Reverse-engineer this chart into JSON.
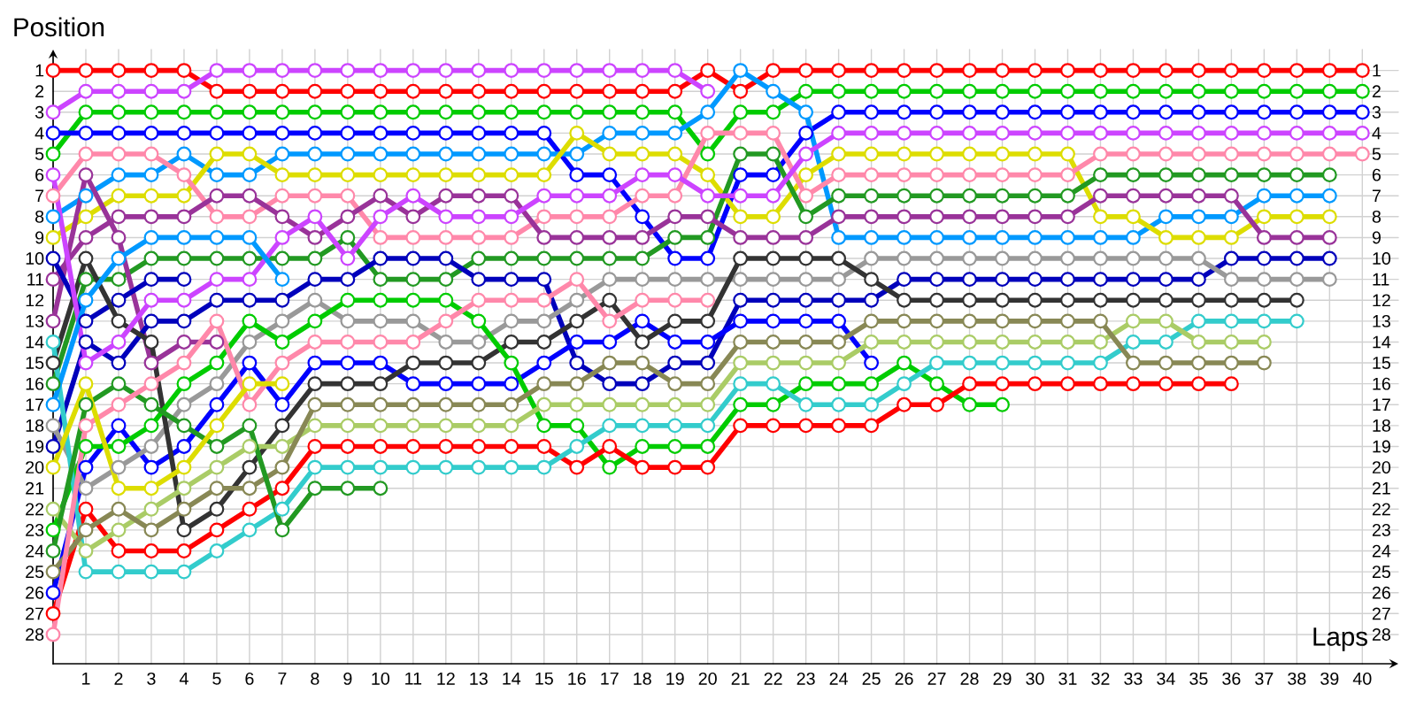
{
  "chart_data": {
    "type": "line",
    "xlabel": "Laps",
    "ylabel": "Position",
    "marker": "circle",
    "line_style": "solid",
    "grid": true,
    "x": [
      0,
      1,
      2,
      3,
      4,
      5,
      6,
      7,
      8,
      9,
      10,
      11,
      12,
      13,
      14,
      15,
      16,
      17,
      18,
      19,
      20,
      21,
      22,
      23,
      24,
      25,
      26,
      27,
      28,
      29,
      30,
      31,
      32,
      33,
      34,
      35,
      36,
      37,
      38,
      39,
      40
    ],
    "xlim": [
      0,
      41.1
    ],
    "ylim": [
      29.4,
      0
    ],
    "xticks": [
      1,
      2,
      3,
      4,
      5,
      6,
      7,
      8,
      9,
      10,
      11,
      12,
      13,
      14,
      15,
      16,
      17,
      18,
      19,
      20,
      21,
      22,
      23,
      24,
      25,
      26,
      27,
      28,
      29,
      30,
      31,
      32,
      33,
      34,
      35,
      36,
      37,
      38,
      39,
      40
    ],
    "yticks": [
      1,
      2,
      3,
      4,
      5,
      6,
      7,
      8,
      9,
      10,
      11,
      12,
      13,
      14,
      15,
      16,
      17,
      18,
      19,
      20,
      21,
      22,
      23,
      24,
      25,
      26,
      27,
      28
    ],
    "y2lim": [
      29.4,
      0
    ],
    "y2ticks": [
      1,
      2,
      3,
      4,
      5,
      6,
      7,
      8,
      9,
      10,
      11,
      12,
      13,
      14,
      15,
      16,
      17,
      18,
      19,
      20,
      21,
      22,
      23,
      24,
      25,
      26,
      27,
      28
    ],
    "series": [
      {
        "color": "#ff0000",
        "values": [
          1,
          1,
          1,
          1,
          1,
          2,
          2,
          2,
          2,
          2,
          2,
          2,
          2,
          2,
          2,
          2,
          2,
          2,
          2,
          2,
          1,
          2,
          1,
          1,
          1,
          1,
          1,
          1,
          1,
          1,
          1,
          1,
          1,
          1,
          1,
          1,
          1,
          1,
          1,
          1,
          1
        ]
      },
      {
        "color": "#cc44ff",
        "values": [
          3,
          2,
          2,
          2,
          2,
          1,
          1,
          1,
          1,
          1,
          1,
          1,
          1,
          1,
          1,
          1,
          1,
          1,
          1,
          1,
          2,
          null,
          null,
          null,
          null,
          null,
          null,
          null,
          null,
          null,
          null,
          null,
          null,
          null,
          null,
          null,
          null,
          null,
          null,
          null,
          null
        ]
      },
      {
        "color": "#00cc00",
        "values": [
          5,
          3,
          3,
          3,
          3,
          3,
          3,
          3,
          3,
          3,
          3,
          3,
          3,
          3,
          3,
          3,
          3,
          3,
          3,
          3,
          5,
          3,
          3,
          2,
          2,
          2,
          2,
          2,
          2,
          2,
          2,
          2,
          2,
          2,
          2,
          2,
          2,
          2,
          2,
          2,
          2
        ]
      },
      {
        "color": "#0000ff",
        "values": [
          4,
          4,
          4,
          4,
          4,
          4,
          4,
          4,
          4,
          4,
          4,
          4,
          4,
          4,
          4,
          4,
          6,
          6,
          8,
          10,
          10,
          6,
          6,
          4,
          3,
          3,
          3,
          3,
          3,
          3,
          3,
          3,
          3,
          3,
          3,
          3,
          3,
          3,
          3,
          3,
          3
        ]
      },
      {
        "color": "#0099ff",
        "values": [
          8,
          7,
          6,
          6,
          5,
          6,
          6,
          5,
          5,
          5,
          5,
          5,
          5,
          5,
          5,
          5,
          5,
          4,
          4,
          4,
          3,
          1,
          2,
          3,
          9,
          9,
          9,
          9,
          9,
          9,
          9,
          9,
          9,
          9,
          8,
          8,
          8,
          7,
          7,
          7,
          null
        ]
      },
      {
        "color": "#dddd00",
        "values": [
          9,
          8,
          7,
          7,
          7,
          5,
          5,
          6,
          6,
          6,
          6,
          6,
          6,
          6,
          6,
          6,
          4,
          5,
          5,
          5,
          6,
          8,
          8,
          6,
          5,
          5,
          5,
          5,
          5,
          5,
          5,
          5,
          8,
          8,
          9,
          9,
          9,
          8,
          8,
          8,
          null
        ]
      },
      {
        "color": "#ff88aa",
        "values": [
          7,
          5,
          5,
          5,
          6,
          8,
          8,
          7,
          7,
          7,
          9,
          9,
          9,
          9,
          9,
          8,
          8,
          8,
          7,
          7,
          4,
          4,
          4,
          7,
          6,
          6,
          6,
          6,
          6,
          6,
          6,
          6,
          5,
          5,
          5,
          5,
          5,
          5,
          5,
          5,
          5
        ]
      },
      {
        "color": "#229922",
        "values": [
          16,
          11,
          11,
          10,
          10,
          10,
          10,
          10,
          10,
          9,
          11,
          11,
          11,
          10,
          10,
          10,
          10,
          10,
          10,
          9,
          9,
          5,
          5,
          8,
          7,
          7,
          7,
          7,
          7,
          7,
          7,
          7,
          6,
          6,
          6,
          6,
          6,
          6,
          6,
          6,
          null
        ]
      },
      {
        "color": "#993399",
        "values": [
          11,
          9,
          8,
          8,
          8,
          7,
          7,
          8,
          9,
          8,
          7,
          8,
          7,
          7,
          7,
          9,
          9,
          9,
          9,
          8,
          8,
          9,
          9,
          9,
          8,
          8,
          8,
          8,
          8,
          8,
          8,
          8,
          7,
          7,
          7,
          7,
          7,
          9,
          9,
          9,
          null
        ]
      },
      {
        "color": "#993399",
        "values": [
          13,
          6,
          9,
          15,
          14,
          14,
          null,
          null,
          null,
          null,
          null,
          null,
          null,
          null,
          null,
          null,
          null,
          null,
          null,
          null,
          null,
          null,
          null,
          null,
          null,
          null,
          null,
          null,
          null,
          null,
          null,
          null,
          null,
          null,
          null,
          null,
          null,
          null,
          null,
          null,
          null
        ]
      },
      {
        "color": "#0000bb",
        "values": [
          10,
          13,
          12,
          11,
          11,
          null,
          null,
          null,
          null,
          null,
          null,
          null,
          null,
          null,
          null,
          null,
          null,
          null,
          null,
          null,
          null,
          null,
          null,
          null,
          null,
          null,
          null,
          null,
          null,
          null,
          null,
          null,
          null,
          null,
          null,
          null,
          null,
          null,
          null,
          null,
          null
        ]
      },
      {
        "color": "#0000bb",
        "values": [
          19,
          14,
          15,
          13,
          13,
          12,
          12,
          12,
          11,
          11,
          10,
          10,
          10,
          11,
          11,
          11,
          15,
          16,
          16,
          15,
          15,
          12,
          12,
          12,
          12,
          12,
          11,
          11,
          11,
          11,
          11,
          11,
          11,
          11,
          11,
          11,
          10,
          10,
          10,
          10,
          null
        ]
      },
      {
        "color": "#0000ff",
        "values": [
          26,
          20,
          18,
          20,
          19,
          17,
          15,
          17,
          15,
          15,
          15,
          16,
          16,
          16,
          16,
          15,
          14,
          14,
          13,
          14,
          14,
          13,
          13,
          13,
          13,
          15,
          null,
          null,
          null,
          null,
          null,
          null,
          null,
          null,
          null,
          null,
          null,
          null,
          null,
          null,
          null
        ]
      },
      {
        "color": "#999999",
        "values": [
          18,
          21,
          20,
          19,
          17,
          16,
          14,
          13,
          12,
          13,
          13,
          13,
          14,
          14,
          13,
          13,
          12,
          11,
          11,
          11,
          11,
          11,
          11,
          11,
          11,
          10,
          10,
          10,
          10,
          10,
          10,
          10,
          10,
          10,
          10,
          10,
          11,
          11,
          11,
          11,
          null
        ]
      },
      {
        "color": "#333333",
        "values": [
          15,
          10,
          13,
          14,
          23,
          22,
          20,
          18,
          16,
          16,
          16,
          15,
          15,
          15,
          14,
          14,
          13,
          12,
          14,
          13,
          13,
          10,
          10,
          10,
          10,
          11,
          12,
          12,
          12,
          12,
          12,
          12,
          12,
          12,
          12,
          12,
          12,
          12,
          12,
          null,
          null
        ]
      },
      {
        "color": "#00cc00",
        "values": [
          23,
          19,
          19,
          18,
          16,
          15,
          13,
          14,
          13,
          12,
          12,
          12,
          12,
          13,
          15,
          18,
          18,
          20,
          19,
          19,
          19,
          17,
          17,
          16,
          16,
          16,
          15,
          16,
          17,
          17,
          null,
          null,
          null,
          null,
          null,
          null,
          null,
          null,
          null,
          null,
          null
        ]
      },
      {
        "color": "#ff0000",
        "values": [
          27,
          22,
          24,
          24,
          24,
          23,
          22,
          21,
          19,
          19,
          19,
          19,
          19,
          19,
          19,
          19,
          20,
          19,
          20,
          20,
          20,
          18,
          18,
          18,
          18,
          18,
          17,
          17,
          16,
          16,
          16,
          16,
          16,
          16,
          16,
          16,
          16,
          null,
          null,
          null,
          null
        ]
      },
      {
        "color": "#33cccc",
        "values": [
          14,
          25,
          25,
          25,
          25,
          24,
          23,
          22,
          20,
          20,
          20,
          20,
          20,
          20,
          20,
          20,
          19,
          18,
          18,
          18,
          18,
          16,
          16,
          17,
          17,
          17,
          16,
          15,
          15,
          15,
          15,
          15,
          15,
          14,
          14,
          13,
          13,
          13,
          13,
          null,
          null
        ]
      },
      {
        "color": "#aacc66",
        "values": [
          22,
          24,
          23,
          22,
          21,
          20,
          19,
          19,
          18,
          18,
          18,
          18,
          18,
          18,
          18,
          17,
          17,
          17,
          17,
          17,
          17,
          15,
          15,
          15,
          15,
          14,
          14,
          14,
          14,
          14,
          14,
          14,
          14,
          13,
          13,
          14,
          14,
          14,
          null,
          null,
          null
        ]
      },
      {
        "color": "#888855",
        "values": [
          25,
          23,
          22,
          23,
          22,
          21,
          21,
          20,
          17,
          17,
          17,
          17,
          17,
          17,
          17,
          16,
          16,
          15,
          15,
          16,
          16,
          14,
          14,
          14,
          14,
          13,
          13,
          13,
          13,
          13,
          13,
          13,
          13,
          15,
          15,
          15,
          15,
          15,
          null,
          null,
          null
        ]
      },
      {
        "color": "#229922",
        "values": [
          24,
          17,
          16,
          17,
          18,
          19,
          18,
          23,
          21,
          21,
          21,
          null,
          null,
          null,
          null,
          null,
          null,
          null,
          null,
          null,
          null,
          null,
          null,
          null,
          null,
          null,
          null,
          null,
          null,
          null,
          null,
          null,
          null,
          null,
          null,
          null,
          null,
          null,
          null,
          null,
          null
        ]
      },
      {
        "color": "#cc44ff",
        "values": [
          6,
          15,
          14,
          12,
          12,
          11,
          11,
          9,
          8,
          10,
          8,
          7,
          8,
          8,
          8,
          7,
          7,
          7,
          6,
          6,
          7,
          7,
          7,
          5,
          4,
          4,
          4,
          4,
          4,
          4,
          4,
          4,
          4,
          4,
          4,
          4,
          4,
          4,
          4,
          4,
          4
        ]
      },
      {
        "color": "#ff88aa",
        "values": [
          28,
          18,
          17,
          16,
          15,
          13,
          17,
          15,
          14,
          14,
          14,
          14,
          13,
          12,
          12,
          12,
          11,
          13,
          12,
          12,
          12,
          null,
          null,
          null,
          null,
          null,
          null,
          null,
          null,
          null,
          null,
          null,
          null,
          null,
          null,
          null,
          null,
          null,
          null,
          null,
          null
        ]
      },
      {
        "color": "#dddd00",
        "values": [
          20,
          16,
          21,
          21,
          20,
          18,
          16,
          16,
          null,
          null,
          null,
          null,
          null,
          null,
          null,
          null,
          null,
          null,
          null,
          null,
          null,
          null,
          null,
          null,
          null,
          null,
          null,
          null,
          null,
          null,
          null,
          null,
          null,
          null,
          null,
          null,
          null,
          null,
          null,
          null,
          null
        ]
      },
      {
        "color": "#0099ff",
        "values": [
          17,
          12,
          10,
          9,
          9,
          9,
          9,
          11,
          null,
          null,
          null,
          null,
          null,
          null,
          null,
          null,
          null,
          null,
          null,
          null,
          null,
          null,
          null,
          null,
          null,
          null,
          null,
          null,
          null,
          null,
          null,
          null,
          null,
          null,
          null,
          null,
          null,
          null,
          null,
          null,
          null
        ]
      }
    ]
  }
}
